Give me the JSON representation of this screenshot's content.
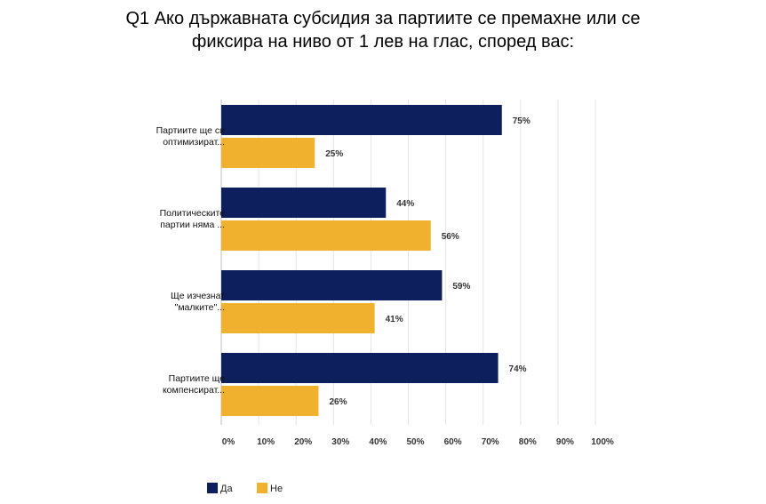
{
  "chart_data": {
    "type": "bar",
    "orientation": "horizontal",
    "title_lines": [
      "Q1 Ако държавната субсидия за партиите се премахне или се",
      "фиксира на ниво от 1 лев на глас, според вас:"
    ],
    "categories": [
      [
        "Партиите ще си",
        "оптимизират..."
      ],
      [
        "Политическите",
        "партии няма ..."
      ],
      [
        "Ще изчезнат",
        "\"малките\"..."
      ],
      [
        "Партиите ще",
        "компенсират..."
      ]
    ],
    "series": [
      {
        "name": "Да",
        "color": "#0d1f5c",
        "values": [
          75,
          44,
          59,
          74
        ]
      },
      {
        "name": "Не",
        "color": "#f0b22e",
        "values": [
          25,
          56,
          41,
          26
        ]
      }
    ],
    "value_suffix": "%",
    "xlim": [
      0,
      100
    ],
    "x_ticks": [
      0,
      10,
      20,
      30,
      40,
      50,
      60,
      70,
      80,
      90,
      100
    ],
    "grid": "vertical",
    "legend_position": "bottom-left"
  }
}
